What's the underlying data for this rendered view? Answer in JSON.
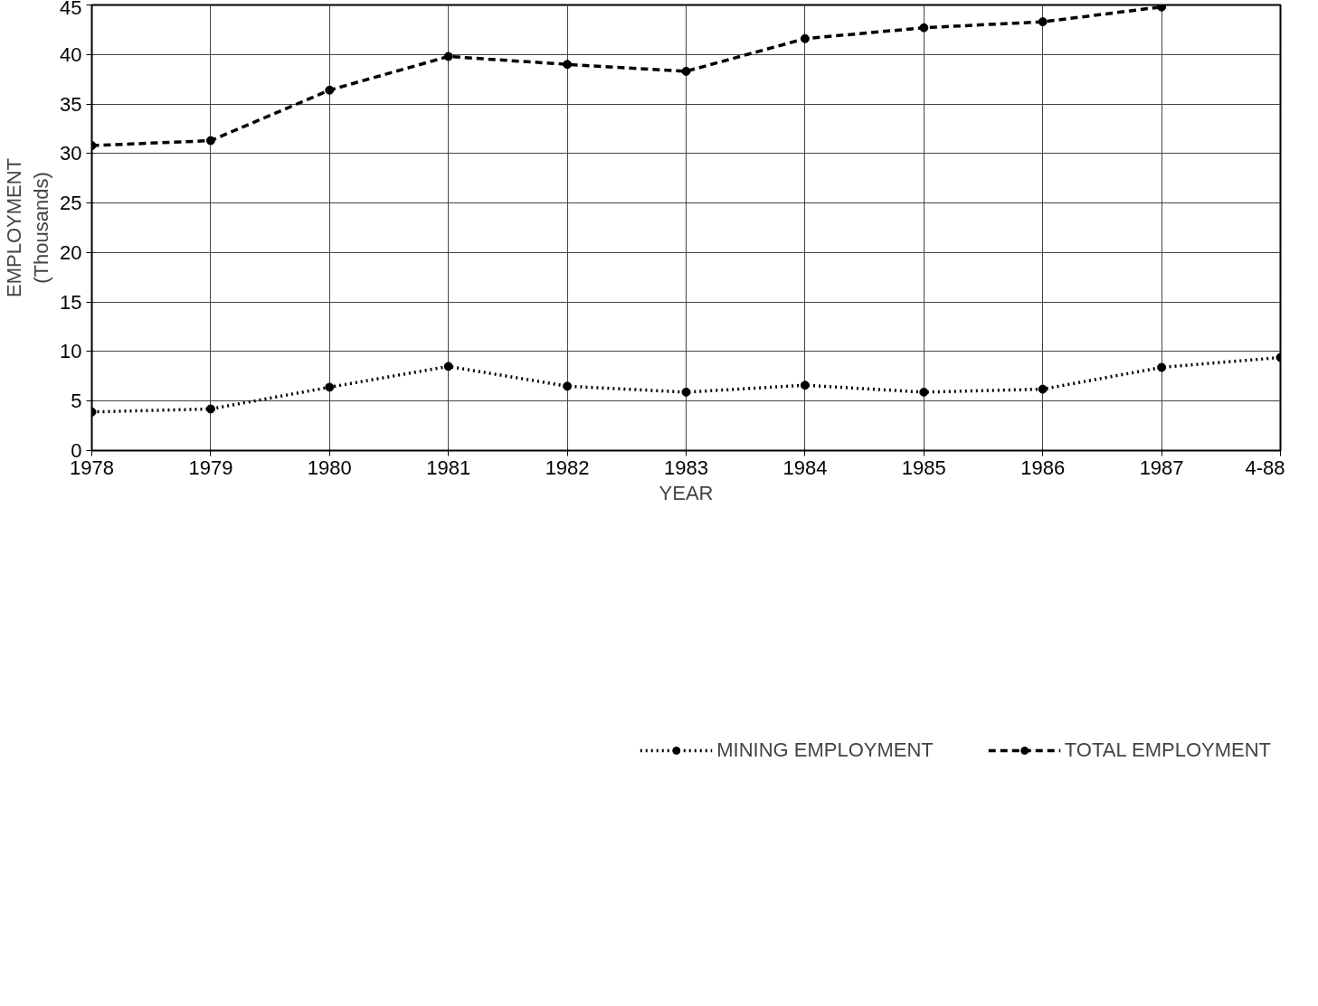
{
  "chart_data": {
    "type": "line",
    "xlabel": "YEAR",
    "ylabel": "EMPLOYMENT\n(Thousands)",
    "categories": [
      "1978",
      "1979",
      "1980",
      "1981",
      "1982",
      "1983",
      "1984",
      "1985",
      "1986",
      "1987",
      "4-88"
    ],
    "series": [
      {
        "name": "MINING EMPLOYMENT",
        "color": "#000000",
        "line_style": "dotted",
        "values": [
          3.9,
          4.2,
          6.4,
          8.5,
          6.5,
          5.9,
          6.6,
          5.9,
          6.2,
          8.4,
          9.4
        ]
      },
      {
        "name": "TOTAL EMPLOYMENT",
        "color": "#000000",
        "line_style": "dashed",
        "values": [
          30.8,
          31.3,
          36.4,
          39.8,
          39.0,
          38.3,
          41.6,
          42.7,
          43.3,
          44.8,
          null
        ]
      }
    ],
    "ylim": [
      0,
      45
    ],
    "yticks": [
      0,
      5,
      10,
      15,
      20,
      25,
      30,
      35,
      40,
      45
    ],
    "grid": true,
    "legend": "bottom",
    "marker": "circle"
  }
}
